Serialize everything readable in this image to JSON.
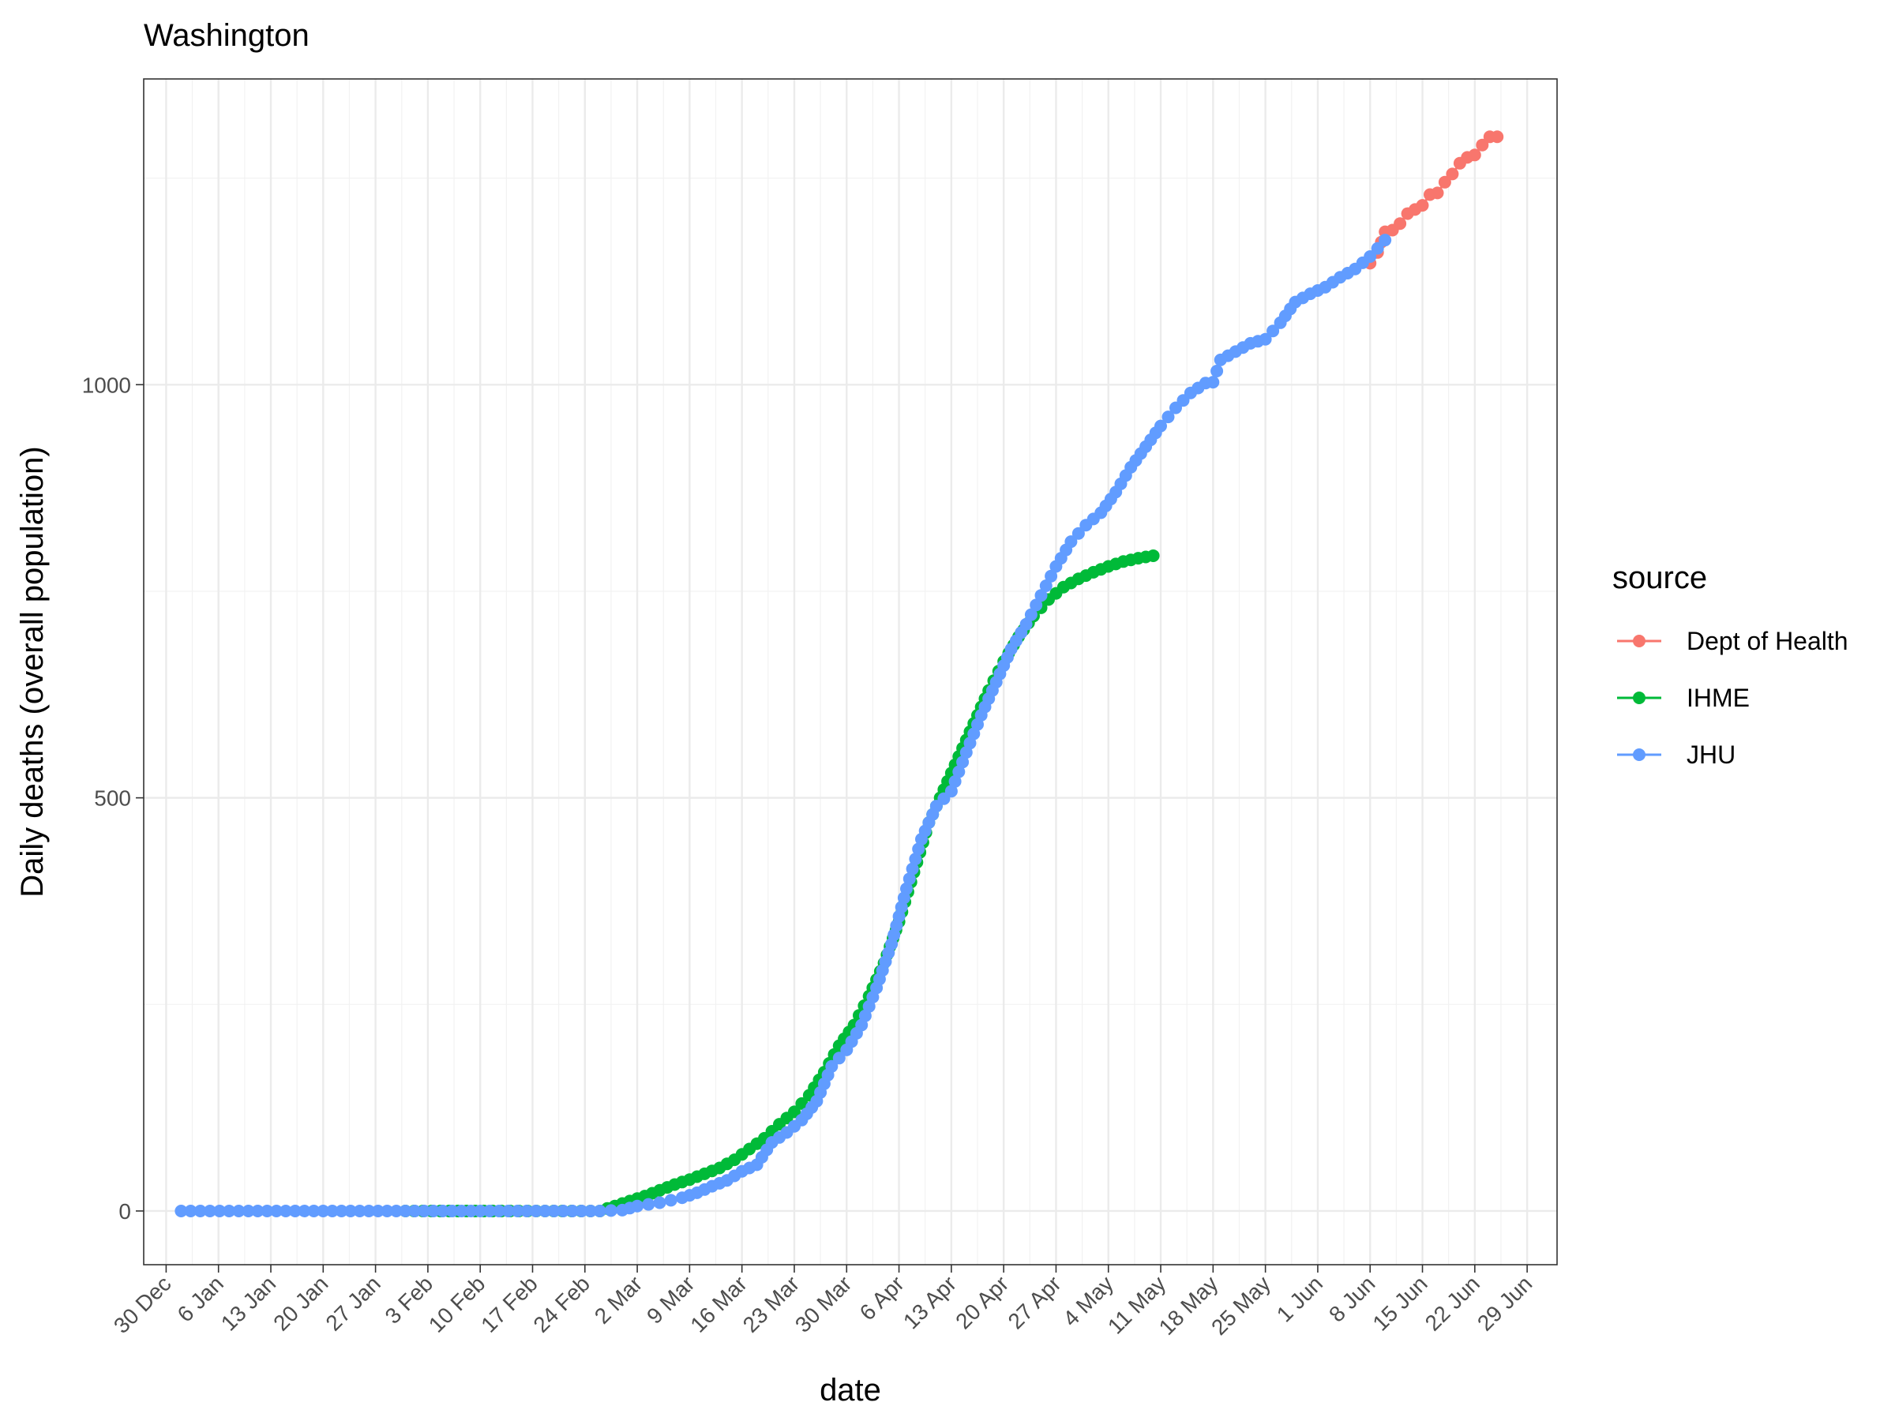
{
  "chart_data": {
    "type": "line",
    "title": "Washington",
    "xlabel": "date",
    "ylabel": "Daily deaths (overall population)",
    "x_range": [
      "2019-12-27",
      "2020-07-03"
    ],
    "ylim": [
      -65,
      1370
    ],
    "y_ticks": [
      0,
      500,
      1000
    ],
    "x_ticks": [
      {
        "date": "2019-12-30",
        "label": "30 Dec"
      },
      {
        "date": "2020-01-06",
        "label": "6 Jan"
      },
      {
        "date": "2020-01-13",
        "label": "13 Jan"
      },
      {
        "date": "2020-01-20",
        "label": "20 Jan"
      },
      {
        "date": "2020-01-27",
        "label": "27 Jan"
      },
      {
        "date": "2020-02-03",
        "label": "3 Feb"
      },
      {
        "date": "2020-02-10",
        "label": "10 Feb"
      },
      {
        "date": "2020-02-17",
        "label": "17 Feb"
      },
      {
        "date": "2020-02-24",
        "label": "24 Feb"
      },
      {
        "date": "2020-03-02",
        "label": "2 Mar"
      },
      {
        "date": "2020-03-09",
        "label": "9 Mar"
      },
      {
        "date": "2020-03-16",
        "label": "16 Mar"
      },
      {
        "date": "2020-03-23",
        "label": "23 Mar"
      },
      {
        "date": "2020-03-30",
        "label": "30 Mar"
      },
      {
        "date": "2020-04-06",
        "label": "6 Apr"
      },
      {
        "date": "2020-04-13",
        "label": "13 Apr"
      },
      {
        "date": "2020-04-20",
        "label": "20 Apr"
      },
      {
        "date": "2020-04-27",
        "label": "27 Apr"
      },
      {
        "date": "2020-05-04",
        "label": "4 May"
      },
      {
        "date": "2020-05-11",
        "label": "11 May"
      },
      {
        "date": "2020-05-18",
        "label": "18 May"
      },
      {
        "date": "2020-05-25",
        "label": "25 May"
      },
      {
        "date": "2020-06-01",
        "label": "1 Jun"
      },
      {
        "date": "2020-06-08",
        "label": "8 Jun"
      },
      {
        "date": "2020-06-15",
        "label": "15 Jun"
      },
      {
        "date": "2020-06-22",
        "label": "22 Jun"
      },
      {
        "date": "2020-06-29",
        "label": "29 Jun"
      }
    ],
    "grid": true,
    "legend": {
      "title": "source",
      "position": "right"
    },
    "series": [
      {
        "name": "Dept of Health",
        "color": "#F8766D",
        "points": [
          [
            "2020-06-08",
            1147
          ],
          [
            "2020-06-09",
            1160
          ],
          [
            "2020-06-10",
            1185
          ],
          [
            "2020-06-11",
            1187
          ],
          [
            "2020-06-12",
            1195
          ],
          [
            "2020-06-13",
            1207
          ],
          [
            "2020-06-14",
            1212
          ],
          [
            "2020-06-15",
            1217
          ],
          [
            "2020-06-16",
            1230
          ],
          [
            "2020-06-17",
            1232
          ],
          [
            "2020-06-18",
            1245
          ],
          [
            "2020-06-19",
            1255
          ],
          [
            "2020-06-20",
            1268
          ],
          [
            "2020-06-21",
            1275
          ],
          [
            "2020-06-22",
            1278
          ],
          [
            "2020-06-23",
            1290
          ],
          [
            "2020-06-24",
            1300
          ],
          [
            "2020-06-25",
            1300
          ]
        ]
      },
      {
        "name": "IHME",
        "color": "#00BA38",
        "points": [
          [
            "2020-01-31",
            0
          ],
          [
            "2020-02-07",
            0
          ],
          [
            "2020-02-14",
            0
          ],
          [
            "2020-02-21",
            0
          ],
          [
            "2020-02-26",
            0
          ],
          [
            "2020-02-28",
            6
          ],
          [
            "2020-03-01",
            12
          ],
          [
            "2020-03-03",
            18
          ],
          [
            "2020-03-05",
            25
          ],
          [
            "2020-03-07",
            32
          ],
          [
            "2020-03-09",
            38
          ],
          [
            "2020-03-11",
            45
          ],
          [
            "2020-03-13",
            52
          ],
          [
            "2020-03-15",
            62
          ],
          [
            "2020-03-17",
            75
          ],
          [
            "2020-03-19",
            88
          ],
          [
            "2020-03-21",
            105
          ],
          [
            "2020-03-23",
            120
          ],
          [
            "2020-03-25",
            140
          ],
          [
            "2020-03-27",
            168
          ],
          [
            "2020-03-29",
            200
          ],
          [
            "2020-03-31",
            225
          ],
          [
            "2020-04-02",
            260
          ],
          [
            "2020-04-04",
            300
          ],
          [
            "2020-04-06",
            350
          ],
          [
            "2020-04-08",
            410
          ],
          [
            "2020-04-10",
            470
          ],
          [
            "2020-04-12",
            510
          ],
          [
            "2020-04-14",
            550
          ],
          [
            "2020-04-16",
            590
          ],
          [
            "2020-04-18",
            630
          ],
          [
            "2020-04-20",
            665
          ],
          [
            "2020-04-22",
            695
          ],
          [
            "2020-04-24",
            720
          ],
          [
            "2020-04-26",
            740
          ],
          [
            "2020-04-28",
            755
          ],
          [
            "2020-04-30",
            765
          ],
          [
            "2020-05-02",
            773
          ],
          [
            "2020-05-04",
            780
          ],
          [
            "2020-05-06",
            786
          ],
          [
            "2020-05-08",
            790
          ],
          [
            "2020-05-10",
            793
          ]
        ]
      },
      {
        "name": "JHU",
        "color": "#619CFF",
        "points": [
          [
            "2020-01-01",
            0
          ],
          [
            "2020-01-10",
            0
          ],
          [
            "2020-01-20",
            0
          ],
          [
            "2020-01-31",
            0
          ],
          [
            "2020-02-15",
            0
          ],
          [
            "2020-02-26",
            0
          ],
          [
            "2020-02-29",
            1
          ],
          [
            "2020-03-02",
            6
          ],
          [
            "2020-03-05",
            10
          ],
          [
            "2020-03-08",
            16
          ],
          [
            "2020-03-10",
            22
          ],
          [
            "2020-03-12",
            30
          ],
          [
            "2020-03-14",
            37
          ],
          [
            "2020-03-16",
            48
          ],
          [
            "2020-03-18",
            56
          ],
          [
            "2020-03-20",
            83
          ],
          [
            "2020-03-22",
            95
          ],
          [
            "2020-03-24",
            110
          ],
          [
            "2020-03-26",
            133
          ],
          [
            "2020-03-28",
            175
          ],
          [
            "2020-03-30",
            195
          ],
          [
            "2020-04-01",
            225
          ],
          [
            "2020-04-03",
            270
          ],
          [
            "2020-04-05",
            323
          ],
          [
            "2020-04-07",
            390
          ],
          [
            "2020-04-09",
            450
          ],
          [
            "2020-04-11",
            490
          ],
          [
            "2020-04-13",
            508
          ],
          [
            "2020-04-15",
            555
          ],
          [
            "2020-04-17",
            600
          ],
          [
            "2020-04-19",
            640
          ],
          [
            "2020-04-21",
            680
          ],
          [
            "2020-04-23",
            710
          ],
          [
            "2020-04-25",
            745
          ],
          [
            "2020-04-27",
            780
          ],
          [
            "2020-04-29",
            810
          ],
          [
            "2020-05-01",
            830
          ],
          [
            "2020-05-03",
            845
          ],
          [
            "2020-05-05",
            870
          ],
          [
            "2020-05-07",
            900
          ],
          [
            "2020-05-09",
            925
          ],
          [
            "2020-05-11",
            950
          ],
          [
            "2020-05-13",
            972
          ],
          [
            "2020-05-15",
            990
          ],
          [
            "2020-05-17",
            1002
          ],
          [
            "2020-05-18",
            1003
          ],
          [
            "2020-05-19",
            1030
          ],
          [
            "2020-05-21",
            1040
          ],
          [
            "2020-05-23",
            1050
          ],
          [
            "2020-05-25",
            1055
          ],
          [
            "2020-05-27",
            1075
          ],
          [
            "2020-05-29",
            1100
          ],
          [
            "2020-05-31",
            1110
          ],
          [
            "2020-06-02",
            1118
          ],
          [
            "2020-06-04",
            1130
          ],
          [
            "2020-06-06",
            1140
          ],
          [
            "2020-06-08",
            1155
          ],
          [
            "2020-06-10",
            1175
          ]
        ]
      }
    ]
  }
}
